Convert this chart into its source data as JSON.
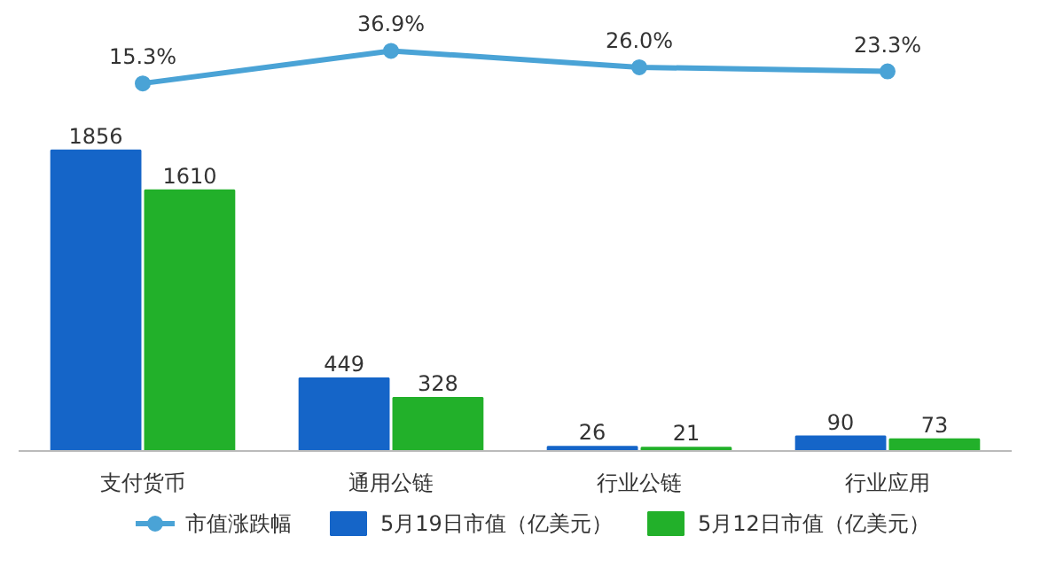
{
  "chart_data": [
    {
      "type": "line",
      "categories": [
        null,
        null,
        null,
        null
      ],
      "tick_labels": "x",
      "marker": "circle",
      "series": [
        {
          "name": "市值涨跌幅",
          "color": "#4aa3d6",
          "values": [
            15.3,
            36.9,
            26.0,
            23.3
          ],
          "value_labels": [
            "15.3%",
            "36.9%",
            "26.0%",
            "23.3%"
          ]
        }
      ]
    },
    {
      "type": "bar",
      "categories": [
        "支付货币",
        "通用公链",
        "行业公链",
        "行业应用"
      ],
      "tick_labels": "x",
      "data_labels": true,
      "legend": "bottom",
      "series": [
        {
          "name": "5月19日市值（亿美元）",
          "color": "#1565c8",
          "values": [
            1856,
            449,
            26,
            90
          ]
        },
        {
          "name": "5月12日市值（亿美元）",
          "color": "#22b02a",
          "values": [
            1610,
            328,
            21,
            73
          ]
        }
      ]
    }
  ]
}
